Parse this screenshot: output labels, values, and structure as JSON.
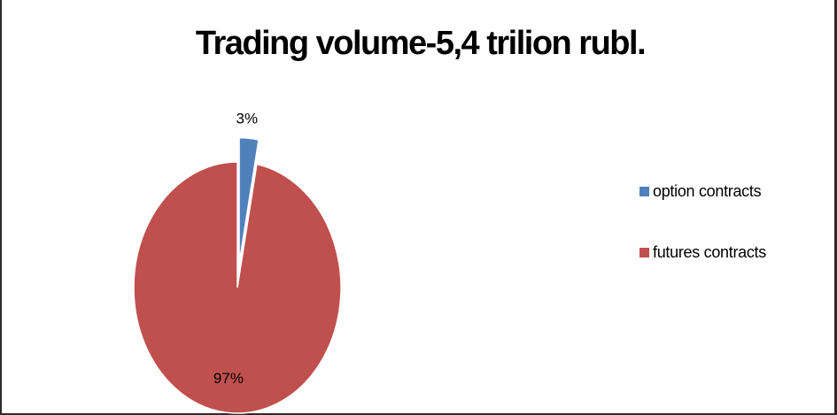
{
  "chart_data": {
    "type": "pie",
    "title": "Trading volume-5,4 trilion rubl.",
    "slices": [
      {
        "name": "option contracts",
        "value": 3,
        "label": "3%",
        "color": "#4f81bd",
        "exploded": true
      },
      {
        "name": "futures contracts",
        "value": 97,
        "label": "97%",
        "color": "#c0504d",
        "exploded": false
      }
    ],
    "legend_position": "right",
    "start_angle": "12 o'clock, clockwise"
  }
}
